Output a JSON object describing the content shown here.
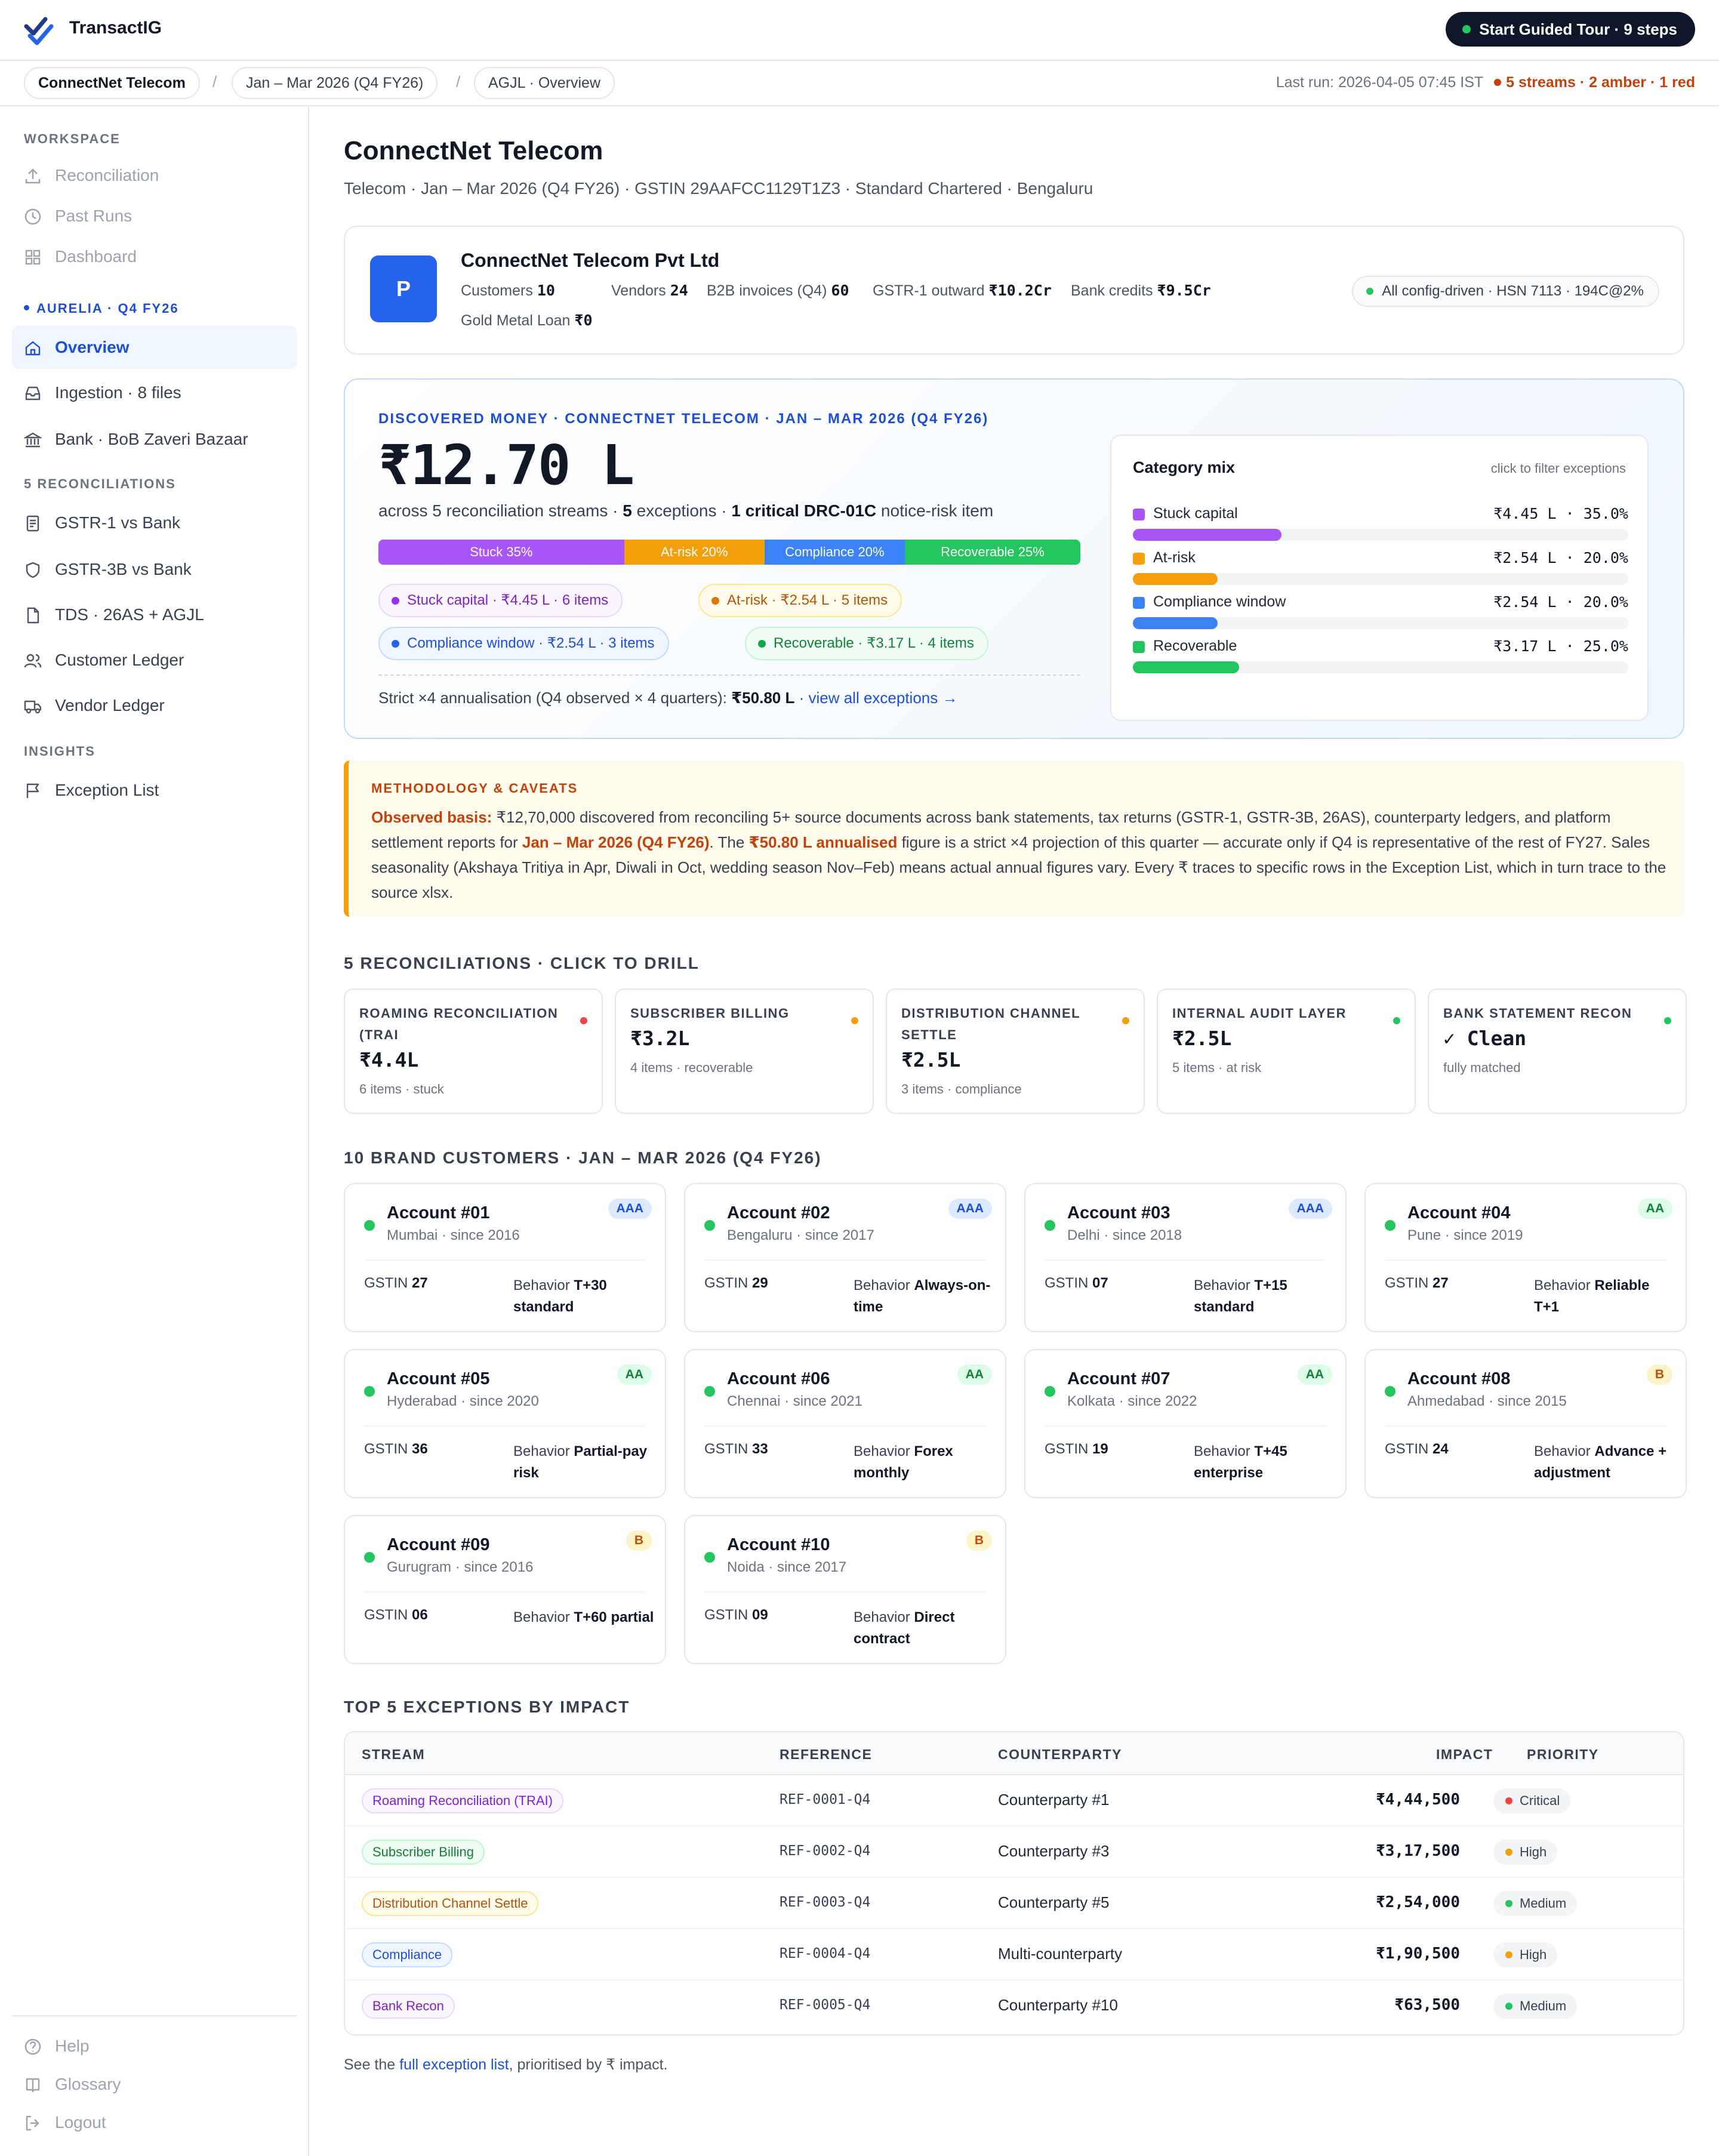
{
  "app": {
    "brand": "TransactIG",
    "tour_label": "Start Guided Tour · 9 steps"
  },
  "crumbs": {
    "items": [
      "ConnectNet Telecom",
      "Jan – Mar 2026 (Q4 FY26)",
      "AGJL · Overview"
    ],
    "separator": "/"
  },
  "status": {
    "last_run": "Last run: 2026-04-05 07:45 IST",
    "streams": "5 streams · 2 amber · 1 red"
  },
  "sidebar": {
    "workspace_title": "WORKSPACE",
    "workspace": [
      "Reconciliation",
      "Past Runs",
      "Dashboard"
    ],
    "client_title": "AURELIA · Q4 FY26",
    "client": [
      "Overview",
      "Ingestion · 8 files",
      "Bank · BoB Zaveri Bazaar"
    ],
    "recon_title": "5 RECONCILIATIONS",
    "recons": [
      "GSTR-1 vs Bank",
      "GSTR-3B vs Bank",
      "TDS · 26AS + AGJL",
      "Customer Ledger",
      "Vendor Ledger"
    ],
    "insights_title": "INSIGHTS",
    "insights": [
      "Exception List"
    ],
    "footer": [
      "Help",
      "Glossary",
      "Logout"
    ]
  },
  "page": {
    "title": "ConnectNet Telecom",
    "subtitle": "Telecom · Jan – Mar 2026 (Q4 FY26) · GSTIN 29AAFCC1129T1Z3 · Standard Chartered · Bengaluru"
  },
  "company": {
    "initial": "P",
    "name": "ConnectNet Telecom Pvt Ltd",
    "stats": [
      {
        "label": "Customers",
        "value": "10"
      },
      {
        "label": "Vendors",
        "value": "24"
      },
      {
        "label": "B2B invoices (Q4)",
        "value": "60"
      },
      {
        "label": "GSTR-1 outward",
        "value": "₹10.2Cr"
      },
      {
        "label": "Bank credits",
        "value": "₹9.5Cr"
      },
      {
        "label": "Gold Metal Loan",
        "value": "₹0"
      }
    ],
    "config_pill": "All config-driven · HSN 7113 · 194C@2%"
  },
  "discovered": {
    "eyebrow": "DISCOVERED MONEY · CONNECTNET TELECOM · JAN – MAR 2026 (Q4 FY26)",
    "amount": "₹12.70 L",
    "across_pre": "across 5 reconciliation streams · ",
    "exceptions": "5",
    "across_mid": " exceptions · ",
    "critical": "1 critical DRC-01C",
    "across_post": " notice-risk item",
    "bar": [
      {
        "label": "Stuck 35%",
        "pct": 35,
        "color": "#a855f7"
      },
      {
        "label": "At-risk 20%",
        "pct": 20,
        "color": "#f59e0b"
      },
      {
        "label": "Compliance 20%",
        "pct": 20,
        "color": "#3b82f6"
      },
      {
        "label": "Recoverable 25%",
        "pct": 25,
        "color": "#22c55e"
      }
    ],
    "chips": [
      {
        "label": "Stuck capital · ₹4.45 L · 6 items"
      },
      {
        "label": "At-risk · ₹2.54 L · 5 items"
      },
      {
        "label": "Compliance window · ₹2.54 L · 3 items"
      },
      {
        "label": "Recoverable · ₹3.17 L · 4 items"
      }
    ],
    "strict_pre": "Strict ×4 annualisation (Q4 observed × 4 quarters): ",
    "strict_val": "₹50.80 L",
    "strict_link": "view all exceptions →"
  },
  "mix": {
    "title": "Category mix",
    "hint": "click to filter exceptions",
    "rows": [
      {
        "label": "Stuck capital",
        "value": "₹4.45 L · 35.0%",
        "pct": 35,
        "color": "#a855f7"
      },
      {
        "label": "At-risk",
        "value": "₹2.54 L · 20.0%",
        "pct": 20,
        "color": "#f59e0b"
      },
      {
        "label": "Compliance window",
        "value": "₹2.54 L · 20.0%",
        "pct": 20,
        "color": "#3b82f6"
      },
      {
        "label": "Recoverable",
        "value": "₹3.17 L · 25.0%",
        "pct": 25,
        "color": "#22c55e"
      }
    ]
  },
  "methodology": {
    "eyebrow": "METHODOLOGY & CAVEATS",
    "lead": "Observed basis:",
    "t1": " ₹12,70,000 discovered from reconciling 5+ source documents across bank statements, tax returns (GSTR-1, GSTR-3B, 26AS), counterparty ledgers, and platform settlement reports for ",
    "period": "Jan – Mar 2026 (Q4 FY26)",
    "t2": ". The ",
    "annual": "₹50.80 L annualised",
    "t3": " figure is a strict ×4 projection of this quarter — accurate only if Q4 is representative of the rest of FY27. Sales seasonality (Akshaya Tritiya in Apr, Diwali in Oct, wedding season Nov–Feb) means actual annual figures vary. Every ₹ traces to specific rows in the Exception List, which in turn trace to the source xlsx."
  },
  "recon_section": {
    "title": "5 RECONCILIATIONS · CLICK TO DRILL",
    "cards": [
      {
        "title": "ROAMING RECONCILIATION (TRAI",
        "value": "₹4.4L",
        "meta": "6 items · stuck",
        "status": "#ef4444"
      },
      {
        "title": "SUBSCRIBER BILLING",
        "value": "₹3.2L",
        "meta": "4 items · recoverable",
        "status": "#f59e0b"
      },
      {
        "title": "DISTRIBUTION CHANNEL SETTLE",
        "value": "₹2.5L",
        "meta": "3 items · compliance",
        "status": "#f59e0b"
      },
      {
        "title": "INTERNAL AUDIT LAYER",
        "value": "₹2.5L",
        "meta": "5 items · at risk",
        "status": "#22c55e"
      },
      {
        "title": "BANK STATEMENT RECON",
        "value": "✓ Clean",
        "meta": "fully matched",
        "status": "#22c55e"
      }
    ]
  },
  "customers": {
    "title": "10 BRAND CUSTOMERS · JAN – MAR 2026 (Q4 FY26)",
    "gstin_label": "GSTIN",
    "behavior_label": "Behavior",
    "items": [
      {
        "name": "Account #01",
        "loc": "Mumbai · since 2016",
        "rating": "AAA",
        "tone": "blue",
        "gstin": "27",
        "behavior": "T+30 standard"
      },
      {
        "name": "Account #02",
        "loc": "Bengaluru · since 2017",
        "rating": "AAA",
        "tone": "blue",
        "gstin": "29",
        "behavior": "Always-on-time"
      },
      {
        "name": "Account #03",
        "loc": "Delhi · since 2018",
        "rating": "AAA",
        "tone": "blue",
        "gstin": "07",
        "behavior": "T+15 standard"
      },
      {
        "name": "Account #04",
        "loc": "Pune · since 2019",
        "rating": "AA",
        "tone": "green",
        "gstin": "27",
        "behavior": "Reliable T+1"
      },
      {
        "name": "Account #05",
        "loc": "Hyderabad · since 2020",
        "rating": "AA",
        "tone": "green",
        "gstin": "36",
        "behavior": "Partial-pay risk"
      },
      {
        "name": "Account #06",
        "loc": "Chennai · since 2021",
        "rating": "AA",
        "tone": "green",
        "gstin": "33",
        "behavior": "Forex monthly"
      },
      {
        "name": "Account #07",
        "loc": "Kolkata · since 2022",
        "rating": "AA",
        "tone": "green",
        "gstin": "19",
        "behavior": "T+45 enterprise"
      },
      {
        "name": "Account #08",
        "loc": "Ahmedabad · since 2015",
        "rating": "B",
        "tone": "amber",
        "gstin": "24",
        "behavior": "Advance + adjustment"
      },
      {
        "name": "Account #09",
        "loc": "Gurugram · since 2016",
        "rating": "B",
        "tone": "amber",
        "gstin": "06",
        "behavior": "T+60 partial"
      },
      {
        "name": "Account #10",
        "loc": "Noida · since 2017",
        "rating": "B",
        "tone": "amber",
        "gstin": "09",
        "behavior": "Direct contract"
      }
    ]
  },
  "exceptions": {
    "title": "TOP 5 EXCEPTIONS BY IMPACT",
    "headers": {
      "stream": "STREAM",
      "reference": "REFERENCE",
      "counterparty": "COUNTERPARTY",
      "impact": "IMPACT",
      "priority": "PRIORITY"
    },
    "rows": [
      {
        "stream": "Roaming Reconciliation (TRAI)",
        "tone": "purple",
        "ref": "REF-0001-Q4",
        "cp": "Counterparty #1",
        "impact": "₹4,44,500",
        "priority": "Critical",
        "pcolor": "#ef4444"
      },
      {
        "stream": "Subscriber Billing",
        "tone": "green",
        "ref": "REF-0002-Q4",
        "cp": "Counterparty #3",
        "impact": "₹3,17,500",
        "priority": "High",
        "pcolor": "#f59e0b"
      },
      {
        "stream": "Distribution Channel Settle",
        "tone": "amber",
        "ref": "REF-0003-Q4",
        "cp": "Counterparty #5",
        "impact": "₹2,54,000",
        "priority": "Medium",
        "pcolor": "#22c55e"
      },
      {
        "stream": "Compliance",
        "tone": "blue",
        "ref": "REF-0004-Q4",
        "cp": "Multi-counterparty",
        "impact": "₹1,90,500",
        "priority": "High",
        "pcolor": "#f59e0b"
      },
      {
        "stream": "Bank Recon",
        "tone": "purple",
        "ref": "REF-0005-Q4",
        "cp": "Counterparty #10",
        "impact": "₹63,500",
        "priority": "Medium",
        "pcolor": "#22c55e"
      }
    ],
    "foot_pre": "See the ",
    "foot_link": "full exception list",
    "foot_post": ", prioritised by ₹ impact."
  }
}
